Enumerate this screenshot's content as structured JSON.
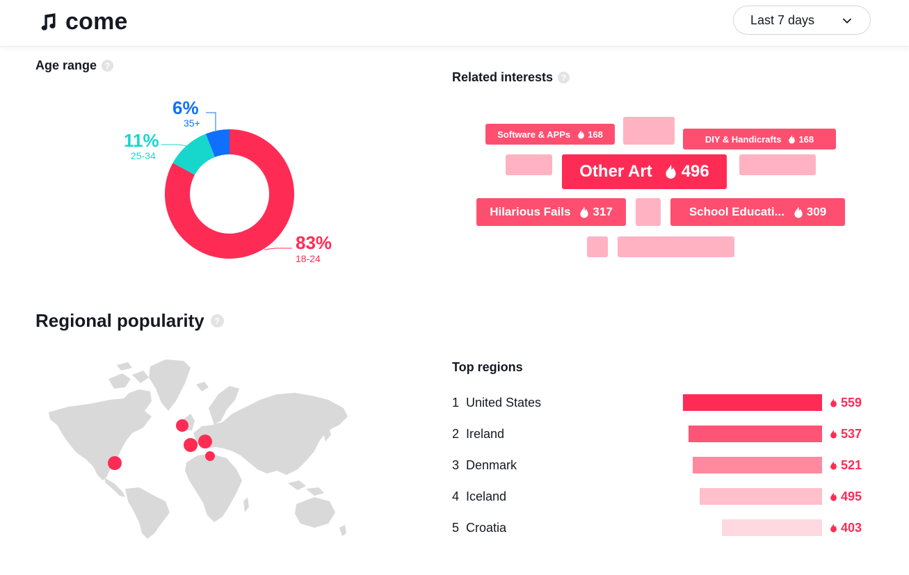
{
  "header": {
    "song_title": "come",
    "period": "Last 7 days",
    "icons": {
      "music": "music-note-icon",
      "dropdown": "chevron-down-icon"
    }
  },
  "age_range": {
    "title": "Age range",
    "help": "?",
    "colors": {
      "18-24": "#fe2c55",
      "25-34": "#17d7cd",
      "35+": "#0f6fff"
    }
  },
  "chart_data": {
    "type": "pie",
    "categories": [
      "18-24",
      "25-34",
      "35+"
    ],
    "values": [
      83,
      11,
      6
    ],
    "labels": [
      "83%",
      "11%",
      "6%"
    ],
    "title": "",
    "colors": [
      "#fe2c55",
      "#17d7cd",
      "#0f6fff"
    ]
  },
  "related_interests": {
    "title": "Related interests",
    "help": "?",
    "icon": "flame-icon",
    "tags": [
      {
        "name": "Software & APPs",
        "score": "168"
      },
      {
        "name": "DIY & Handicrafts",
        "score": "168"
      },
      {
        "name": "Other Art",
        "score": "496"
      },
      {
        "name": "Hilarious Fails",
        "score": "317"
      },
      {
        "name": "School Educati...",
        "score": "309"
      }
    ]
  },
  "regional": {
    "title": "Regional popularity",
    "help": "?",
    "top_title": "Top regions",
    "icon": "flame-icon",
    "regions": [
      {
        "rank": "1",
        "name": "United States",
        "score": "559",
        "fraction": 1.0,
        "color": "#fe2c55"
      },
      {
        "rank": "2",
        "name": "Ireland",
        "score": "537",
        "fraction": 0.96,
        "color": "#fe5475"
      },
      {
        "rank": "3",
        "name": "Denmark",
        "score": "521",
        "fraction": 0.93,
        "color": "#ff8aa0"
      },
      {
        "rank": "4",
        "name": "Iceland",
        "score": "495",
        "fraction": 0.88,
        "color": "#ffbfcb"
      },
      {
        "rank": "5",
        "name": "Croatia",
        "score": "403",
        "fraction": 0.72,
        "color": "#ffd9e0"
      }
    ]
  }
}
